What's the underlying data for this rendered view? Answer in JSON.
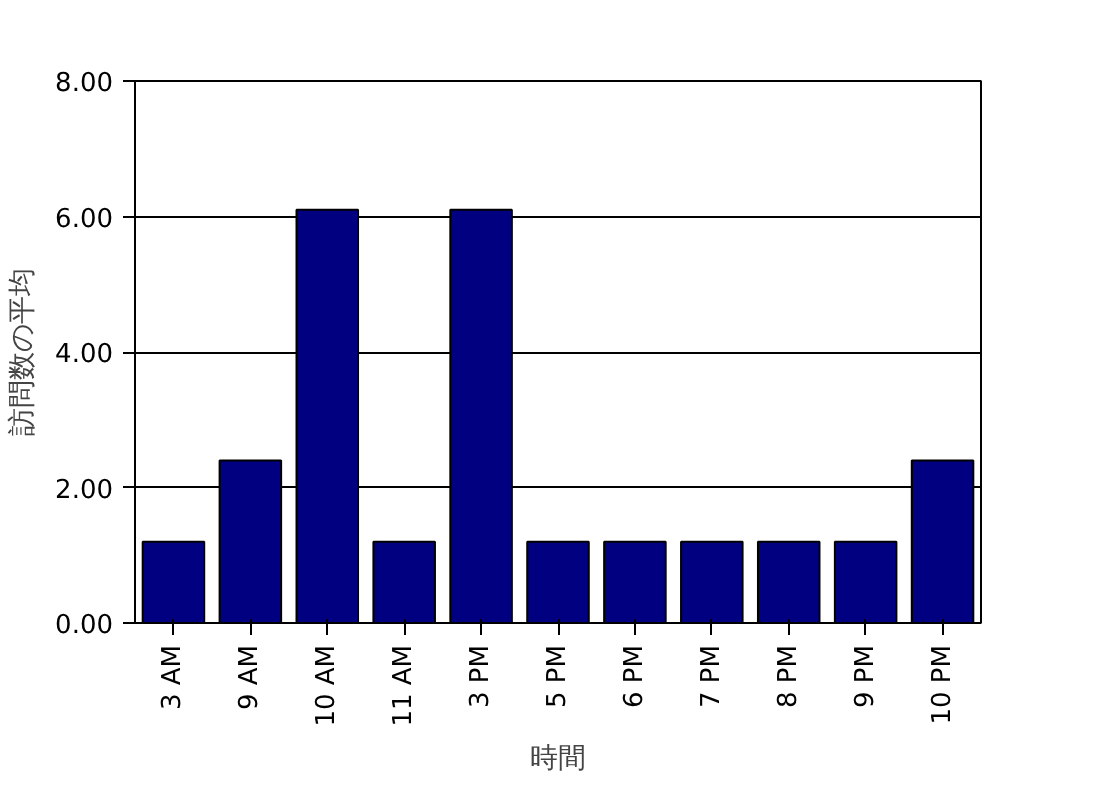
{
  "chart_data": {
    "type": "bar",
    "xlabel": "時間",
    "ylabel": "訪問数の平均",
    "categories": [
      "3 AM",
      "9 AM",
      "10 AM",
      "11 AM",
      "3 PM",
      "5 PM",
      "6 PM",
      "7 PM",
      "8 PM",
      "9 PM",
      "10 PM"
    ],
    "values": [
      1.2,
      2.4,
      6.1,
      1.2,
      6.1,
      1.2,
      1.2,
      1.2,
      1.2,
      1.2,
      2.4
    ],
    "color": "#000080",
    "ylim": [
      0,
      8
    ],
    "yticks": [
      {
        "value": 0,
        "label": "0.00"
      },
      {
        "value": 2,
        "label": "2.00"
      },
      {
        "value": 4,
        "label": "4.00"
      },
      {
        "value": 6,
        "label": "6.00"
      },
      {
        "value": 8,
        "label": "8.00"
      }
    ],
    "grid": "y"
  }
}
